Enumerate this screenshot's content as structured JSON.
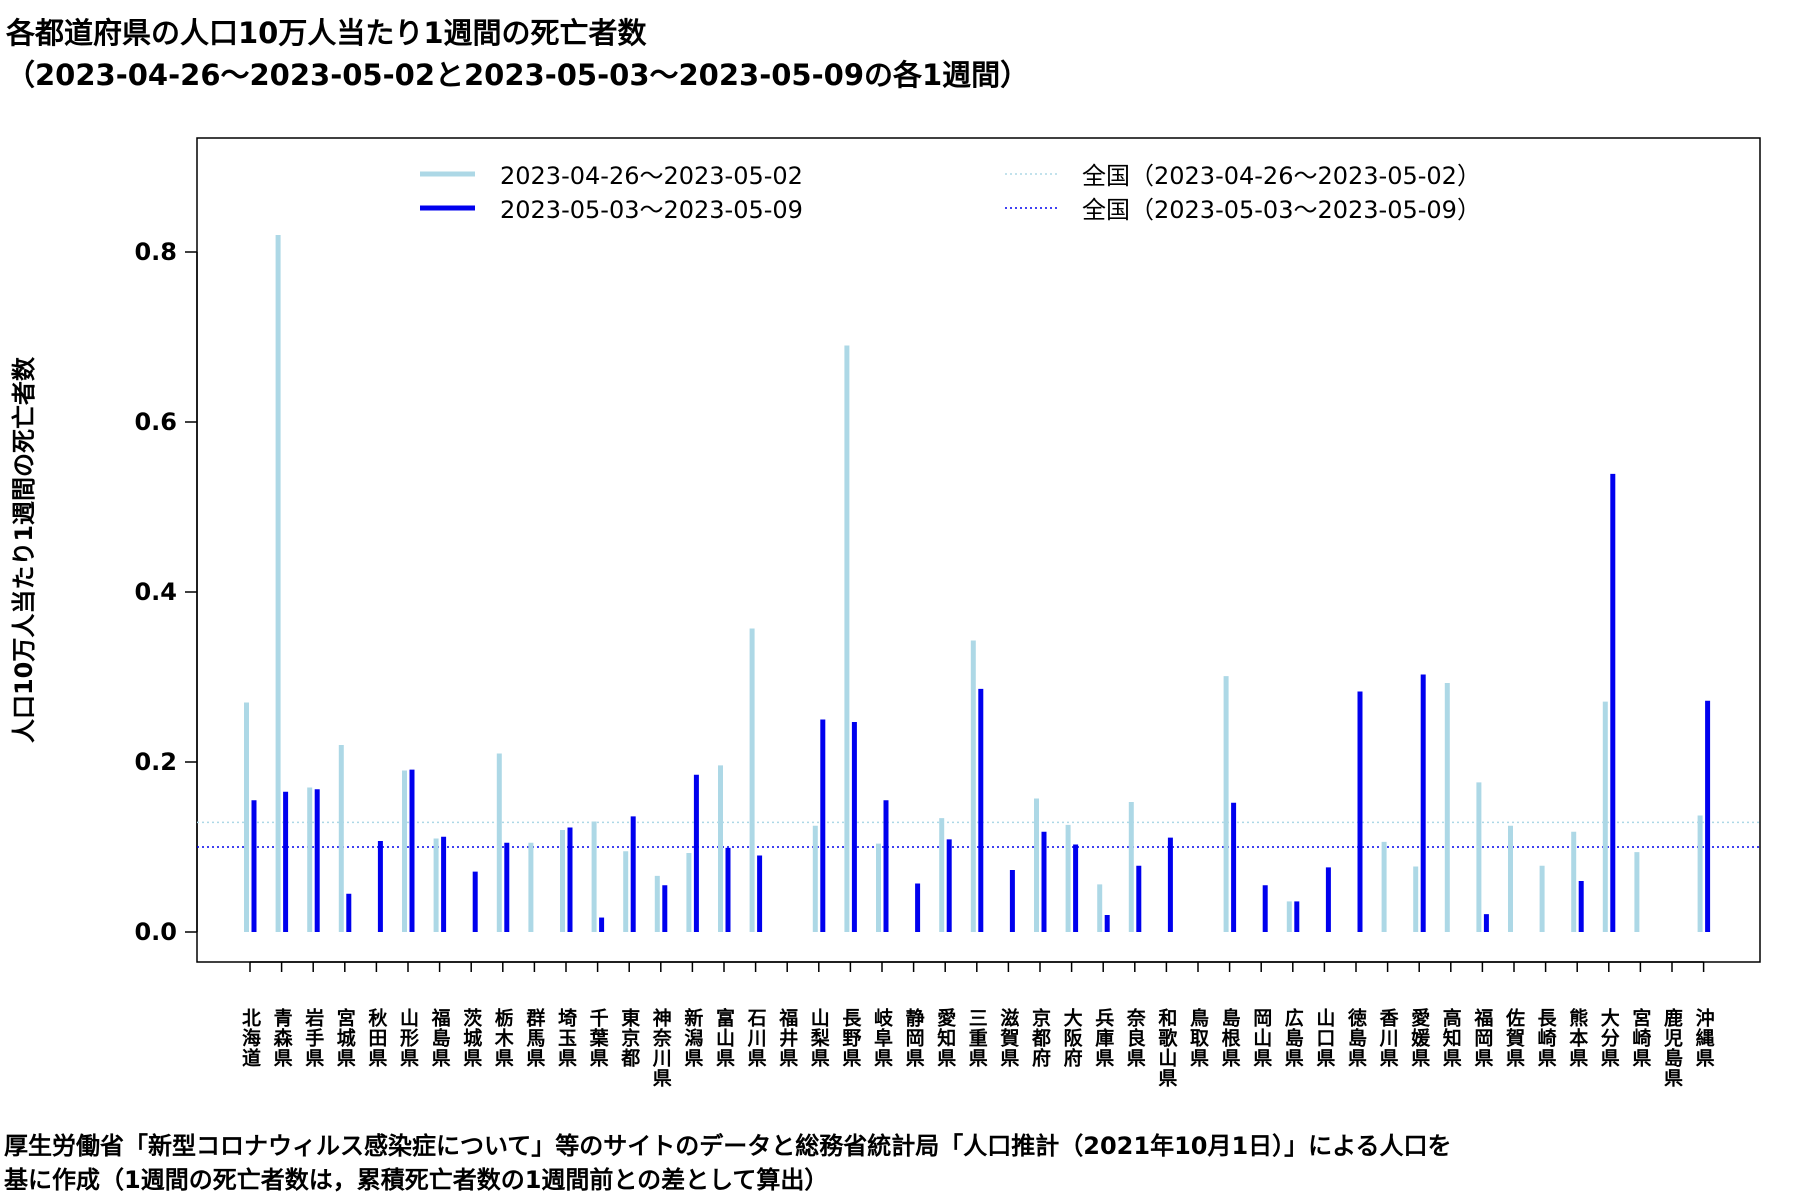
{
  "title_line1": "各都道府県の人口10万人当たり1週間の死亡者数",
  "title_line2": "（2023-04-26～2023-05-02と2023-05-03～2023-05-09の各1週間）",
  "footer_line1": "厚生労働省「新型コロナウィルス感染症について」等のサイトのデータと総務省統計局「人口推計（2021年10月1日）」による人口を",
  "footer_line2": "基に作成（1週間の死亡者数は，累積死亡者数の1週間前との差として算出）",
  "colors": {
    "week1": "#add8e6",
    "week2": "#0000ee"
  },
  "chart_data": {
    "type": "bar",
    "ylabel": "人口10万人当たり1週間の死亡者数",
    "ylim": [
      0,
      0.9
    ],
    "yticks": [
      0.0,
      0.2,
      0.4,
      0.6,
      0.8
    ],
    "ytick_labels": [
      "0.0",
      "0.2",
      "0.4",
      "0.6",
      "0.8"
    ],
    "legend_placement": "top",
    "categories": [
      "北海道",
      "青森県",
      "岩手県",
      "宮城県",
      "秋田県",
      "山形県",
      "福島県",
      "茨城県",
      "栃木県",
      "群馬県",
      "埼玉県",
      "千葉県",
      "東京都",
      "神奈川県",
      "新潟県",
      "富山県",
      "石川県",
      "福井県",
      "山梨県",
      "長野県",
      "岐阜県",
      "静岡県",
      "愛知県",
      "三重県",
      "滋賀県",
      "京都府",
      "大阪府",
      "兵庫県",
      "奈良県",
      "和歌山県",
      "鳥取県",
      "島根県",
      "岡山県",
      "広島県",
      "山口県",
      "徳島県",
      "香川県",
      "愛媛県",
      "高知県",
      "福岡県",
      "佐賀県",
      "長崎県",
      "熊本県",
      "大分県",
      "宮崎県",
      "鹿児島県",
      "沖縄県"
    ],
    "series": [
      {
        "name": "2023-04-26～2023-05-02",
        "values": [
          0.27,
          0.82,
          0.17,
          0.22,
          0.0,
          0.19,
          0.11,
          0.0,
          0.21,
          0.105,
          0.12,
          0.13,
          0.095,
          0.066,
          0.093,
          0.196,
          0.357,
          0.0,
          0.125,
          0.69,
          0.104,
          0.0,
          0.134,
          0.343,
          0.0,
          0.157,
          0.126,
          0.056,
          0.153,
          0.0,
          0.0,
          0.301,
          0.0,
          0.036,
          0.0,
          0.0,
          0.106,
          0.077,
          0.293,
          0.176,
          0.125,
          0.078,
          0.118,
          0.271,
          0.094,
          0.0,
          0.137
        ]
      },
      {
        "name": "2023-05-03～2023-05-09",
        "values": [
          0.155,
          0.165,
          0.168,
          0.045,
          0.107,
          0.191,
          0.112,
          0.071,
          0.105,
          0.0,
          0.123,
          0.017,
          0.136,
          0.055,
          0.185,
          0.099,
          0.09,
          0.0,
          0.25,
          0.247,
          0.155,
          0.057,
          0.109,
          0.286,
          0.073,
          0.118,
          0.103,
          0.02,
          0.078,
          0.111,
          0.0,
          0.152,
          0.055,
          0.036,
          0.076,
          0.283,
          0.0,
          0.303,
          0.0,
          0.021,
          0.0,
          0.0,
          0.06,
          0.539,
          0.0,
          0.0,
          0.272
        ]
      }
    ],
    "reference_lines": [
      {
        "name": "全国（2023-04-26～2023-05-02）",
        "value": 0.129,
        "style": "dotted"
      },
      {
        "name": "全国（2023-05-03～2023-05-09）",
        "value": 0.1,
        "style": "dotted"
      }
    ]
  }
}
